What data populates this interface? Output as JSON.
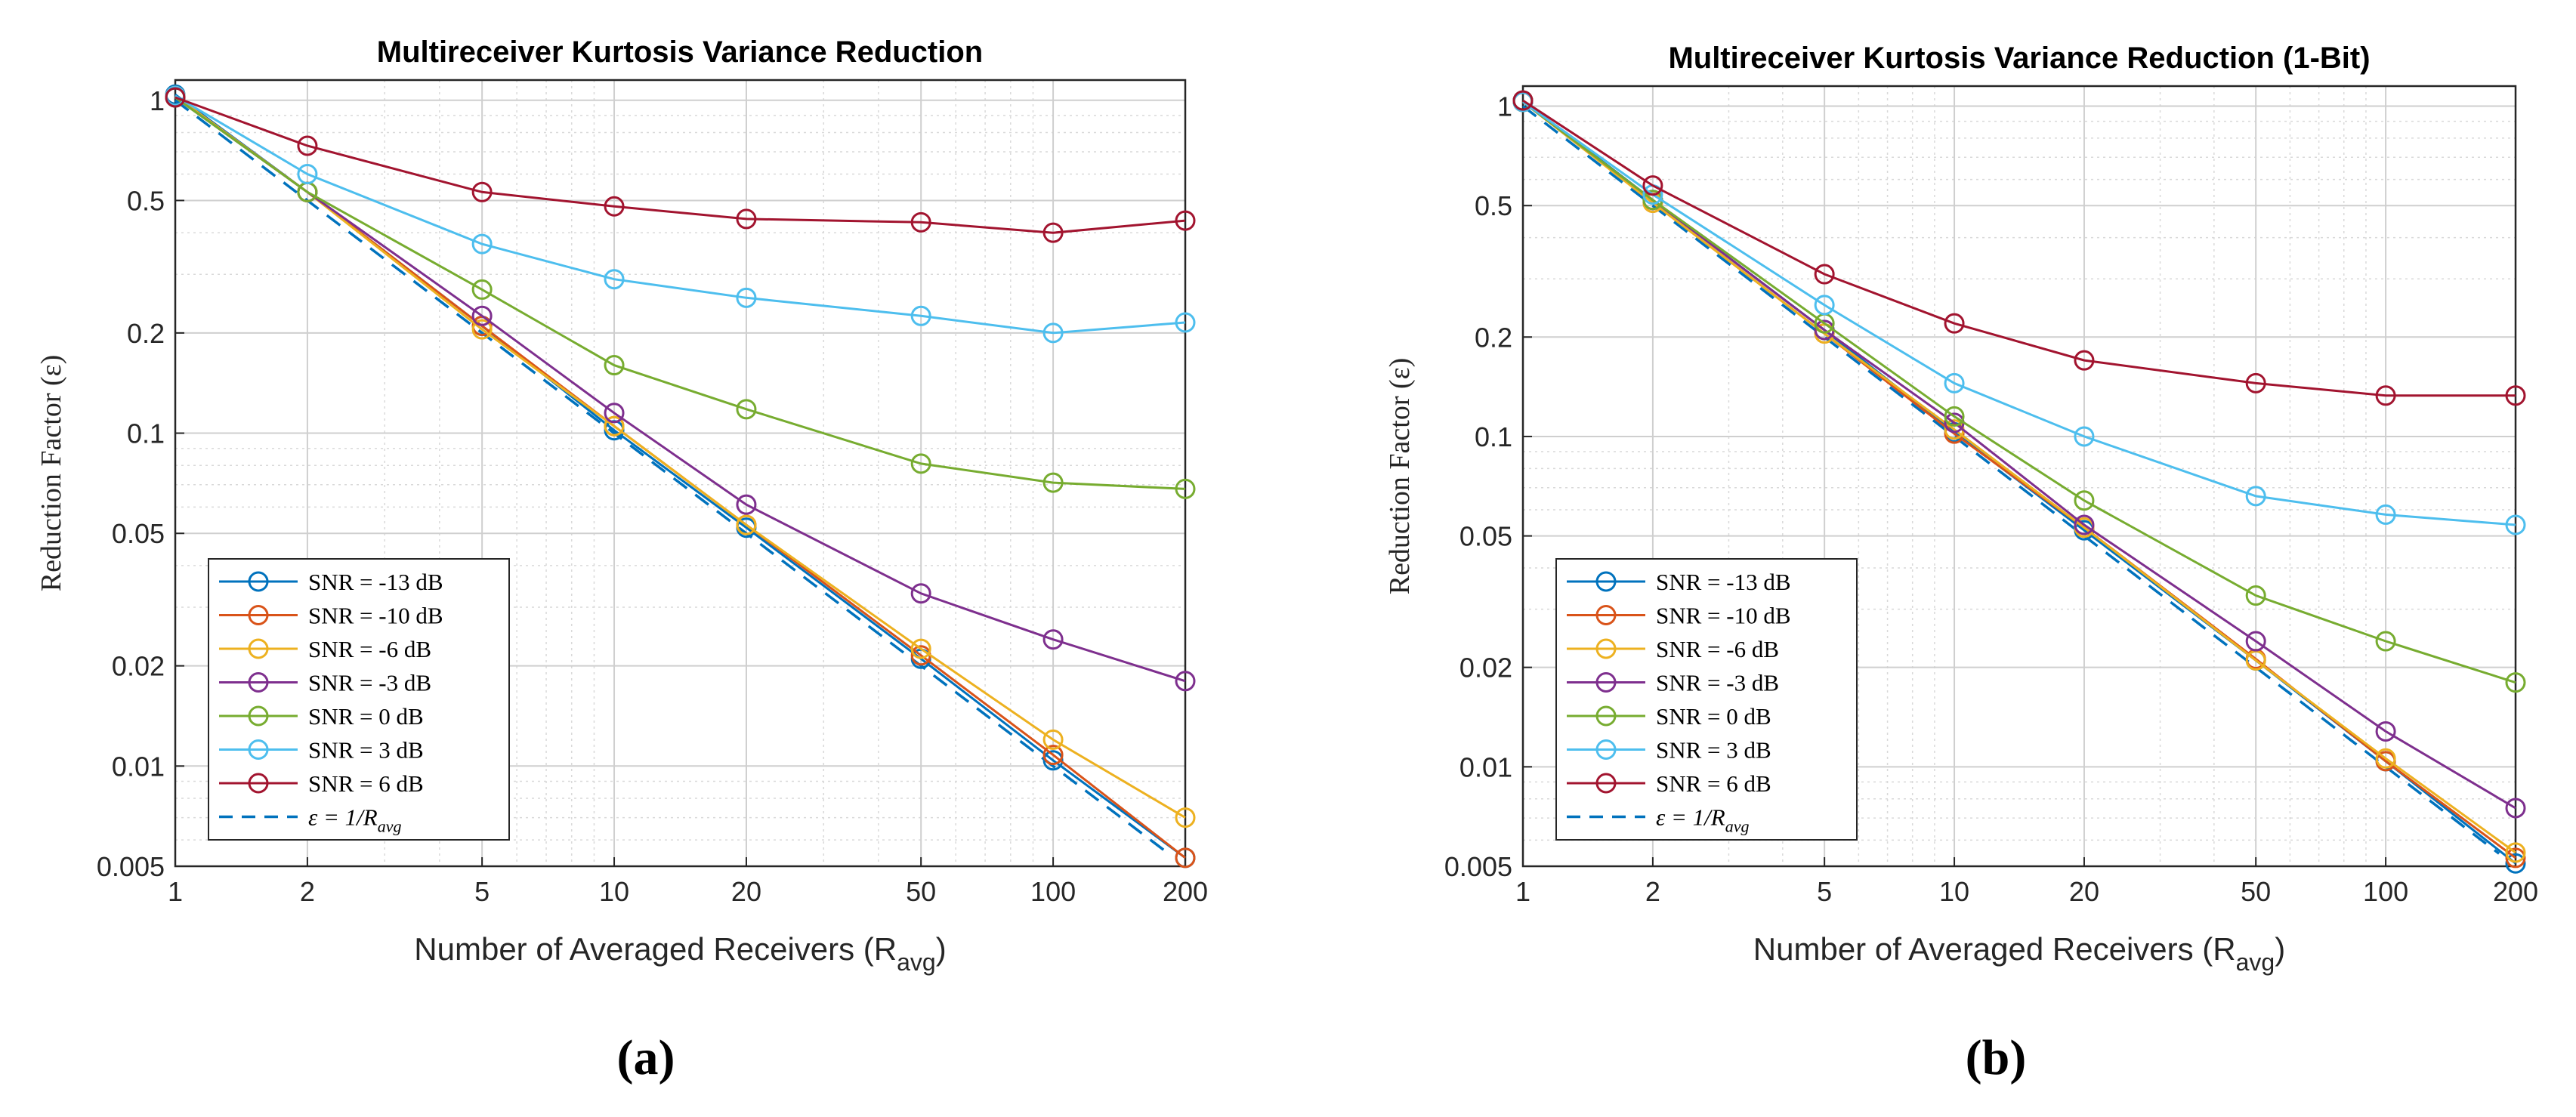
{
  "panels": [
    {
      "caption": "(a)",
      "chart_data": {
        "type": "line",
        "title": "Multireceiver Kurtosis Variance Reduction",
        "xlabel": "Number of Averaged Receivers (R",
        "xlabel_sub": "avg",
        "xlabel_end": ")",
        "ylabel": "Reduction Factor (ε)",
        "x_scale": "log",
        "y_scale": "log",
        "xlim": [
          1,
          200
        ],
        "ylim": [
          0.005,
          1.15
        ],
        "x_ticks": [
          1,
          2,
          5,
          10,
          20,
          50,
          100,
          200
        ],
        "x_tick_labels": [
          "1",
          "2",
          "5",
          "10",
          "20",
          "50",
          "100",
          "200"
        ],
        "y_ticks": [
          0.005,
          0.01,
          0.02,
          0.05,
          0.1,
          0.2,
          0.5,
          1
        ],
        "y_tick_labels": [
          "0.005",
          "0.01",
          "0.02",
          "0.05",
          "0.1",
          "0.2",
          "0.5",
          "1"
        ],
        "grid": true,
        "legend_position": "bottom-left",
        "x": [
          1,
          2,
          5,
          10,
          20,
          50,
          100,
          200
        ],
        "series": [
          {
            "name": "SNR = -13 dB",
            "color": "#0072BD",
            "values": [
              1.04,
              0.53,
              0.21,
              0.102,
              0.052,
              0.021,
              0.0104,
              0.0053
            ]
          },
          {
            "name": "SNR = -10 dB",
            "color": "#D95319",
            "values": [
              1.03,
              0.53,
              0.21,
              0.105,
              0.053,
              0.0215,
              0.0108,
              0.0053
            ]
          },
          {
            "name": "SNR = -6 dB",
            "color": "#EDB120",
            "values": [
              1.03,
              0.53,
              0.205,
              0.105,
              0.053,
              0.0225,
              0.012,
              0.007
            ]
          },
          {
            "name": "SNR = -3 dB",
            "color": "#7E2F8E",
            "values": [
              1.02,
              0.53,
              0.225,
              0.115,
              0.061,
              0.033,
              0.024,
              0.018
            ]
          },
          {
            "name": "SNR = 0 dB",
            "color": "#77AC30",
            "values": [
              1.02,
              0.53,
              0.27,
              0.16,
              0.118,
              0.081,
              0.071,
              0.068
            ]
          },
          {
            "name": "SNR = 3 dB",
            "color": "#4DBEEE",
            "values": [
              1.03,
              0.6,
              0.37,
              0.29,
              0.255,
              0.225,
              0.2,
              0.215
            ]
          },
          {
            "name": "SNR = 6 dB",
            "color": "#A2142F",
            "values": [
              1.02,
              0.73,
              0.53,
              0.48,
              0.44,
              0.43,
              0.4,
              0.435
            ]
          }
        ],
        "reference_line": {
          "name": "ε = 1/R",
          "name_sub": "avg",
          "color": "#0072BD",
          "style": "dashed",
          "formula": "1/x"
        }
      }
    },
    {
      "caption": "(b)",
      "chart_data": {
        "type": "line",
        "title": "Multireceiver Kurtosis Variance Reduction (1-Bit)",
        "xlabel": "Number of Averaged Receivers (R",
        "xlabel_sub": "avg",
        "xlabel_end": ")",
        "ylabel": "Reduction Factor (ε)",
        "x_scale": "log",
        "y_scale": "log",
        "xlim": [
          1,
          200
        ],
        "ylim": [
          0.005,
          1.15
        ],
        "x_ticks": [
          1,
          2,
          5,
          10,
          20,
          50,
          100,
          200
        ],
        "x_tick_labels": [
          "1",
          "2",
          "5",
          "10",
          "20",
          "50",
          "100",
          "200"
        ],
        "y_ticks": [
          0.005,
          0.01,
          0.02,
          0.05,
          0.1,
          0.2,
          0.5,
          1
        ],
        "y_tick_labels": [
          "0.005",
          "0.01",
          "0.02",
          "0.05",
          "0.1",
          "0.2",
          "0.5",
          "1"
        ],
        "grid": true,
        "legend_position": "bottom-left",
        "x": [
          1,
          2,
          5,
          10,
          20,
          50,
          100,
          200
        ],
        "series": [
          {
            "name": "SNR = -13 dB",
            "color": "#0072BD",
            "values": [
              1.04,
              0.52,
              0.21,
              0.103,
              0.052,
              0.021,
              0.0104,
              0.0051
            ]
          },
          {
            "name": "SNR = -10 dB",
            "color": "#D95319",
            "values": [
              1.04,
              0.51,
              0.205,
              0.102,
              0.053,
              0.0212,
              0.0104,
              0.0053
            ]
          },
          {
            "name": "SNR = -6 dB",
            "color": "#EDB120",
            "values": [
              1.03,
              0.51,
              0.205,
              0.105,
              0.053,
              0.021,
              0.0106,
              0.0055
            ]
          },
          {
            "name": "SNR = -3 dB",
            "color": "#7E2F8E",
            "values": [
              1.03,
              0.52,
              0.21,
              0.11,
              0.054,
              0.024,
              0.0128,
              0.0075
            ]
          },
          {
            "name": "SNR = 0 dB",
            "color": "#77AC30",
            "values": [
              1.03,
              0.52,
              0.22,
              0.115,
              0.064,
              0.033,
              0.024,
              0.018
            ]
          },
          {
            "name": "SNR = 3 dB",
            "color": "#4DBEEE",
            "values": [
              1.03,
              0.54,
              0.25,
              0.145,
              0.1,
              0.066,
              0.058,
              0.054
            ]
          },
          {
            "name": "SNR = 6 dB",
            "color": "#A2142F",
            "values": [
              1.04,
              0.575,
              0.31,
              0.22,
              0.17,
              0.145,
              0.133,
              0.133
            ]
          }
        ],
        "reference_line": {
          "name": "ε = 1/R",
          "name_sub": "avg",
          "color": "#0072BD",
          "style": "dashed",
          "formula": "1/x"
        }
      }
    }
  ]
}
